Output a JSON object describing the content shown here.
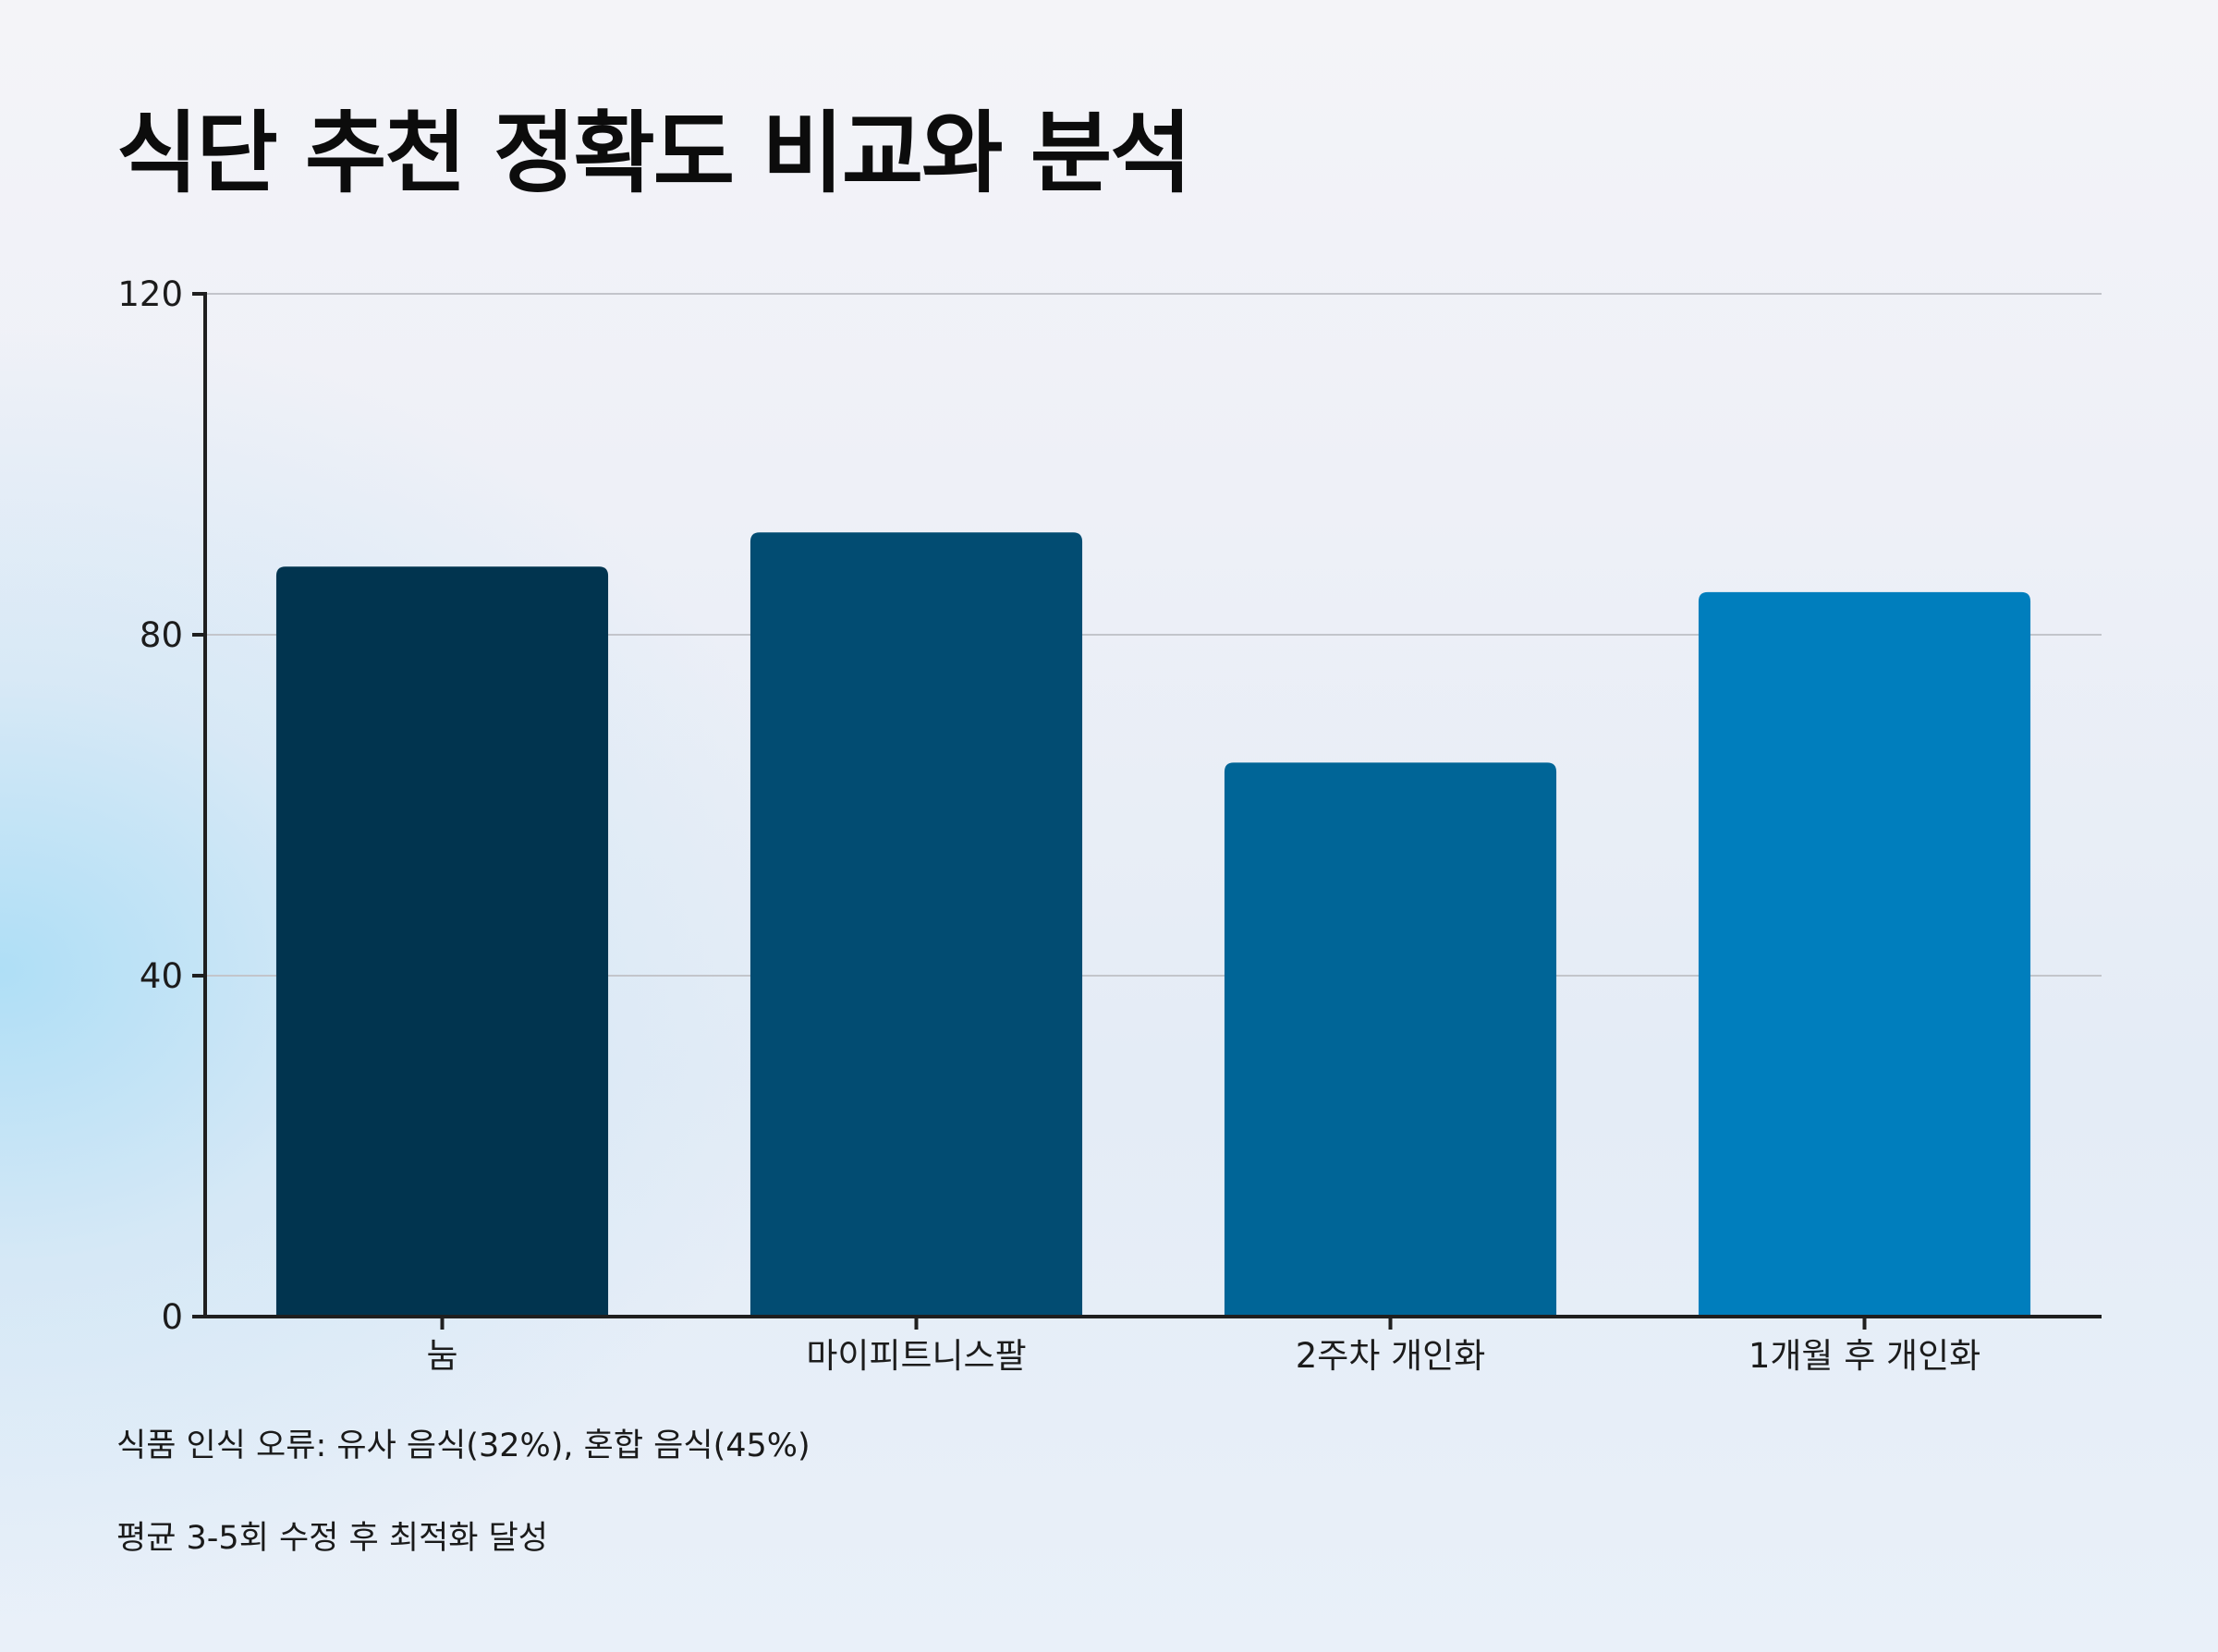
{
  "chart_data": {
    "type": "bar",
    "title": "식단 추천 정확도 비교와 분석",
    "xlabel": "",
    "ylabel": "",
    "categories": [
      "눔",
      "마이피트니스팔",
      "2주차 개인화",
      "1개월 후 개인화"
    ],
    "values": [
      88,
      92,
      65,
      85
    ],
    "colors": [
      "#01344f",
      "#024c72",
      "#006597",
      "#007ebd"
    ],
    "ylim": [
      0,
      120
    ],
    "yticks": [
      0,
      40,
      80,
      120
    ],
    "grid": true,
    "legend": "none",
    "annotations": [
      "식품 인식 오류: 유사 음식(32%), 혼합 음식(45%)",
      "평균 3-5회 수정 후 최적화 달성"
    ]
  }
}
